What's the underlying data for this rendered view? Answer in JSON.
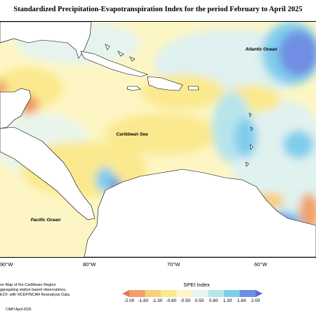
{
  "title": "Standardized Precipitation-Evapotranspiration Index for the period February to April 2025",
  "map": {
    "labels": {
      "atlantic": "Atlantic Ocean",
      "caribbean": "Caribbean Sea",
      "pacific": "Pacific Ocean"
    },
    "longitude_ticks": [
      "90°W",
      "80°W",
      "70°W",
      "60°W"
    ]
  },
  "legend": {
    "title": "SPEI Index",
    "breaks": [
      "-2.00",
      "-1.60",
      "-1.30",
      "-0.80",
      "-0.50",
      "0.50",
      "0.80",
      "1.30",
      "1.60",
      "2.00"
    ],
    "colors": [
      "#e8735a",
      "#f2a06a",
      "#f8cf7c",
      "#fbe98f",
      "#fdf7c8",
      "#e6f4f0",
      "#b7e4ec",
      "#7fcdec",
      "#6f8ee3",
      "#5a6bd3"
    ]
  },
  "notes": {
    "lines": [
      "on Map of the Caribbean Region",
      "ggregating station based observations,",
      "ECF, with NCEP/NCAR Reanalysis Data."
    ],
    "credit": "CIMH April-2025"
  }
}
